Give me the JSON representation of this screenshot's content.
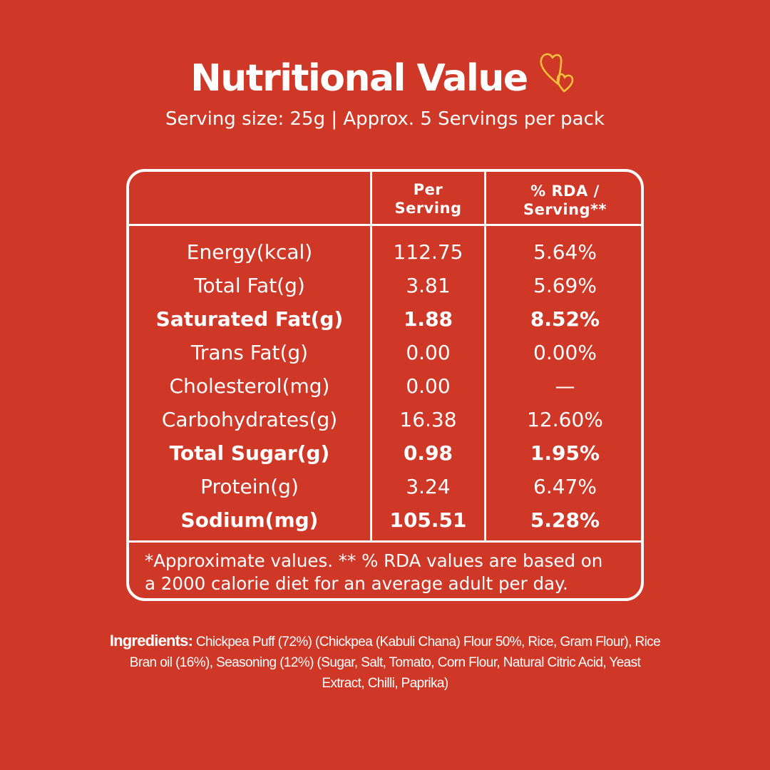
{
  "title": "Nutritional Value",
  "subtitle": "Serving size: 25g | Approx. 5 Servings per pack",
  "table": {
    "headers": {
      "per_serving_line1": "Per",
      "per_serving_line2": "Serving",
      "rda_line1": "% RDA /",
      "rda_line2": "Serving**"
    },
    "rows": [
      {
        "nutrient": "Energy(kcal)",
        "per_serving": "112.75",
        "rda": "5.64%",
        "bold": false
      },
      {
        "nutrient": "Total Fat(g)",
        "per_serving": "3.81",
        "rda": "5.69%",
        "bold": false
      },
      {
        "nutrient": "Saturated Fat(g)",
        "per_serving": "1.88",
        "rda": "8.52%",
        "bold": true
      },
      {
        "nutrient": "Trans Fat(g)",
        "per_serving": "0.00",
        "rda": "0.00%",
        "bold": false
      },
      {
        "nutrient": "Cholesterol(mg)",
        "per_serving": "0.00",
        "rda": "—",
        "bold": false
      },
      {
        "nutrient": "Carbohydrates(g)",
        "per_serving": "16.38",
        "rda": "12.60%",
        "bold": false
      },
      {
        "nutrient": "Total Sugar(g)",
        "per_serving": "0.98",
        "rda": "1.95%",
        "bold": true
      },
      {
        "nutrient": "Protein(g)",
        "per_serving": "3.24",
        "rda": "6.47%",
        "bold": false
      },
      {
        "nutrient": "Sodium(mg)",
        "per_serving": "105.51",
        "rda": "5.28%",
        "bold": true
      }
    ],
    "footnote_line1": "*Approximate values. ** % RDA values are based on",
    "footnote_line2": "a 2000 calorie diet for an average adult per day."
  },
  "ingredients": {
    "label": "Ingredients:",
    "text": " Chickpea Puff (72%) (Chickpea (Kabuli Chana) Flour 50%, Rice, Gram Flour), Rice Bran oil (16%), Seasoning (12%)  (Sugar, Salt, Tomato, Corn Flour, Natural Citric Acid, Yeast Extract, Chilli, Paprika)"
  },
  "colors": {
    "background": "#cf3727",
    "text": "#ffffff",
    "hearts": "#f3c13a"
  },
  "icons": {
    "decoration": "hearts-icon"
  }
}
